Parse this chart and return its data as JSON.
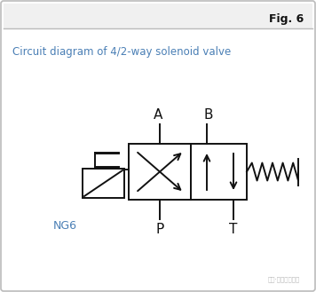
{
  "title": "Fig. 6",
  "subtitle": "Circuit diagram of 4/2-way solenoid valve",
  "ng_label": "NG6",
  "bg_color": "#ffffff",
  "line_color": "#111111",
  "subtitle_color": "#4a7fb5",
  "ng_color": "#4a7fb5",
  "title_color": "#111111",
  "watermark": "积连·积道于乐于心"
}
